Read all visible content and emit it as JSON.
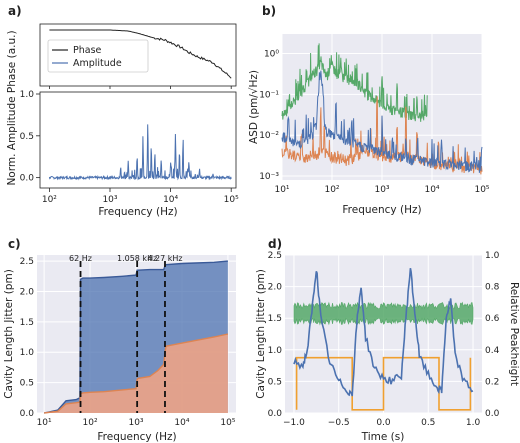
{
  "chart_data": [
    {
      "panel": "a)",
      "type": "line",
      "subpanels": [
        {
          "name": "phase",
          "series": [
            {
              "name": "Phase",
              "color": "#222222",
              "x": [
                100,
                1000,
                2000,
                3000,
                5000,
                8000,
                10000,
                15000,
                20000,
                30000,
                50000,
                70000,
                100000
              ],
              "y": [
                1.0,
                1.0,
                0.98,
                0.93,
                0.85,
                0.8,
                0.75,
                0.65,
                0.55,
                0.45,
                0.35,
                0.2,
                0.05
              ]
            }
          ]
        },
        {
          "name": "amplitude",
          "series": [
            {
              "name": "Amplitude",
              "color": "#4c72b0",
              "peaks": [
                [
                  1500,
                  0.15
                ],
                [
                  2000,
                  0.22
                ],
                [
                  2800,
                  0.3
                ],
                [
                  3500,
                  0.55
                ],
                [
                  4200,
                  0.75
                ],
                [
                  4800,
                  0.45
                ],
                [
                  5500,
                  0.35
                ],
                [
                  7000,
                  0.25
                ],
                [
                  10000,
                  0.18
                ],
                [
                  12000,
                  0.55
                ],
                [
                  14000,
                  0.38
                ],
                [
                  16000,
                  0.45
                ],
                [
                  20000,
                  0.2
                ],
                [
                  30000,
                  0.12
                ],
                [
                  50000,
                  0.05
                ]
              ],
              "baseline": 0.0
            }
          ]
        }
      ],
      "xlabel": "Frequency (Hz)",
      "ylabel": "Norm. Amplitude Phase (a.u.)",
      "xscale": "log",
      "xlim": [
        70,
        120000
      ],
      "ylim_amplitude": [
        -0.1,
        1.0
      ],
      "yticks_amplitude": [
        "0.0",
        "0.5",
        "1.0"
      ],
      "xticks": [
        "10²",
        "10³",
        "10⁴",
        "10⁵"
      ],
      "legend": [
        "Phase",
        "Amplitude"
      ]
    },
    {
      "panel": "b)",
      "type": "line",
      "xlabel": "Frequency (Hz)",
      "ylabel": "ASD (pm/√Hz)",
      "xscale": "log",
      "yscale": "log",
      "xlim": [
        10,
        100000
      ],
      "ylim": [
        0.0008,
        3
      ],
      "xticks": [
        "10¹",
        "10²",
        "10³",
        "10⁴",
        "10⁵"
      ],
      "yticks": [
        "10⁻³",
        "10⁻²",
        "10⁻¹",
        "10⁰"
      ],
      "series": [
        {
          "name": "green",
          "color": "#55a868",
          "x": [
            10,
            15,
            20,
            30,
            40,
            50,
            60,
            70,
            80,
            100,
            120,
            150,
            200,
            300,
            500,
            800,
            1000,
            2000,
            3000,
            5000,
            8000
          ],
          "y": [
            0.03,
            0.05,
            0.08,
            0.15,
            0.3,
            0.4,
            0.6,
            0.35,
            0.3,
            0.5,
            0.35,
            0.3,
            0.25,
            0.2,
            0.1,
            0.07,
            0.05,
            0.04,
            0.035,
            0.03,
            0.025
          ],
          "spikes": [
            [
              60,
              0.9
            ],
            [
              100,
              0.6
            ],
            [
              150,
              0.8
            ],
            [
              300,
              0.5
            ],
            [
              500,
              0.4
            ],
            [
              1000,
              0.3
            ],
            [
              2000,
              0.2
            ],
            [
              5000,
              0.1
            ]
          ]
        },
        {
          "name": "blue",
          "color": "#4c72b0",
          "x": [
            10,
            15,
            20,
            30,
            40,
            50,
            60,
            70,
            100,
            150,
            200,
            300,
            500,
            1000,
            2000,
            5000,
            10000,
            20000,
            50000,
            100000
          ],
          "y": [
            0.01,
            0.008,
            0.006,
            0.008,
            0.01,
            0.02,
            0.3,
            0.015,
            0.01,
            0.008,
            0.007,
            0.006,
            0.005,
            0.004,
            0.003,
            0.0025,
            0.0022,
            0.002,
            0.0018,
            0.0017
          ],
          "spikes": [
            [
              60,
              0.3
            ],
            [
              120,
              0.08
            ],
            [
              1000,
              0.03
            ],
            [
              3000,
              0.01
            ],
            [
              10000,
              0.008
            ]
          ]
        },
        {
          "name": "orange",
          "color": "#dd8452",
          "x": [
            10,
            15,
            20,
            30,
            50,
            70,
            100,
            200,
            300,
            500,
            1000,
            2000,
            3000,
            5000,
            10000,
            20000,
            50000,
            100000
          ],
          "y": [
            0.004,
            0.0035,
            0.003,
            0.003,
            0.0035,
            0.004,
            0.003,
            0.0025,
            0.003,
            0.004,
            0.003,
            0.003,
            0.003,
            0.0025,
            0.002,
            0.0018,
            0.0016,
            0.0015
          ],
          "spikes": [
            [
              60,
              0.05
            ],
            [
              70,
              0.02
            ],
            [
              300,
              0.01
            ],
            [
              600,
              0.015
            ],
            [
              800,
              0.1
            ],
            [
              1000,
              0.03
            ],
            [
              2000,
              0.02
            ],
            [
              3000,
              0.06
            ],
            [
              5000,
              0.015
            ]
          ]
        }
      ]
    },
    {
      "panel": "c)",
      "type": "area",
      "xlabel": "Frequency (Hz)",
      "ylabel": "Cavity Length Jitter (pm)",
      "xscale": "log",
      "xlim": [
        7,
        150000
      ],
      "ylim": [
        0,
        2.6
      ],
      "xticks": [
        "10¹",
        "10²",
        "10³",
        "10⁴",
        "10⁵"
      ],
      "yticks": [
        "0.0",
        "0.5",
        "1.0",
        "1.5",
        "2.0",
        "2.5"
      ],
      "series": [
        {
          "name": "blue",
          "color": "#4c72b0",
          "x": [
            10,
            20,
            30,
            50,
            60,
            62,
            70,
            100,
            200,
            500,
            1000,
            1058,
            1100,
            2000,
            4000,
            4270,
            4500,
            10000,
            50000,
            100000
          ],
          "y": [
            0.0,
            0.05,
            0.2,
            0.22,
            0.25,
            2.2,
            2.22,
            2.22,
            2.23,
            2.25,
            2.27,
            2.35,
            2.35,
            2.36,
            2.36,
            2.42,
            2.44,
            2.46,
            2.48,
            2.5
          ]
        },
        {
          "name": "orange",
          "color": "#dd8452",
          "x": [
            10,
            20,
            30,
            50,
            60,
            62,
            70,
            100,
            200,
            500,
            1000,
            1058,
            1100,
            2000,
            3000,
            4000,
            4270,
            4500,
            10000,
            50000,
            100000
          ],
          "y": [
            0.0,
            0.03,
            0.15,
            0.17,
            0.18,
            0.32,
            0.33,
            0.34,
            0.35,
            0.38,
            0.4,
            0.55,
            0.57,
            0.6,
            0.7,
            0.8,
            1.0,
            1.1,
            1.15,
            1.25,
            1.3
          ]
        }
      ],
      "vlines": [
        {
          "x": 62,
          "label": "62 Hz"
        },
        {
          "x": 1058,
          "label": "1.058 kHz"
        },
        {
          "x": 4270,
          "label": "4.27 kHz"
        }
      ]
    },
    {
      "panel": "d)",
      "type": "line",
      "xlabel": "Time (s)",
      "ylabel": "Cavity Length Jitter (pm)",
      "y2label": "Relative Peakheight",
      "xlim": [
        -1.1,
        1.1
      ],
      "ylim": [
        0,
        2.5
      ],
      "y2lim": [
        0,
        1.0
      ],
      "xticks": [
        "−1.0",
        "−0.5",
        "0.0",
        "0.5",
        "1.0"
      ],
      "yticks": [
        "0.0",
        "0.5",
        "1.0",
        "1.5",
        "2.0",
        "2.5"
      ],
      "y2ticks": [
        "0.0",
        "0.2",
        "0.4",
        "0.6",
        "0.8",
        "1.0"
      ],
      "series": [
        {
          "name": "jitter",
          "color": "#4c72b0",
          "x": [
            -1.0,
            -0.9,
            -0.85,
            -0.8,
            -0.75,
            -0.7,
            -0.6,
            -0.5,
            -0.4,
            -0.35,
            -0.3,
            -0.25,
            -0.2,
            -0.1,
            0.0,
            0.1,
            0.2,
            0.25,
            0.3,
            0.35,
            0.4,
            0.5,
            0.6,
            0.65,
            0.7,
            0.75,
            0.8,
            0.9,
            1.0
          ],
          "y": [
            0.8,
            0.75,
            1.0,
            1.6,
            2.3,
            1.5,
            0.8,
            0.5,
            0.35,
            0.3,
            1.4,
            2.0,
            1.2,
            0.7,
            0.55,
            0.5,
            0.6,
            1.5,
            2.3,
            1.6,
            0.9,
            0.6,
            0.4,
            0.35,
            1.5,
            1.8,
            0.9,
            0.5,
            0.35
          ]
        },
        {
          "name": "peakheight band",
          "color": "#55a868",
          "axis": "y2",
          "center": 0.63,
          "halfwidth": 0.05
        },
        {
          "name": "gate",
          "color": "#f0a030",
          "axis": "y2",
          "x": [
            -0.97,
            -0.97,
            -0.35,
            -0.35,
            0.0,
            0.0,
            0.62,
            0.62,
            0.97,
            0.97
          ],
          "y": [
            0.02,
            0.35,
            0.35,
            0.02,
            0.02,
            0.35,
            0.35,
            0.02,
            0.02,
            0.35
          ]
        }
      ]
    }
  ]
}
